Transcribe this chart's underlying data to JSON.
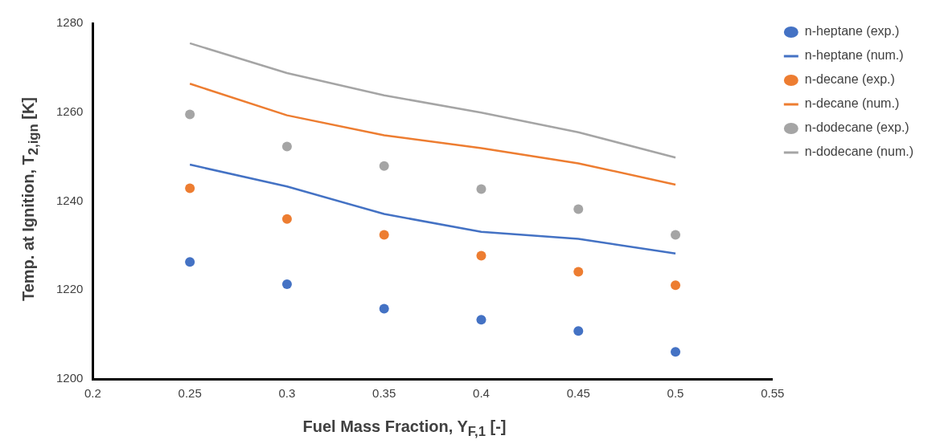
{
  "chart_data": {
    "type": "scatter",
    "xlabel": "Fuel Mass Fraction, Y$_{F,1}$ [-]",
    "ylabel": "Temp. at Ignition, T$_{2,ign}$ [K]",
    "x": [
      0.25,
      0.3,
      0.35,
      0.4,
      0.45,
      0.5
    ],
    "xlim": [
      0.2,
      0.55
    ],
    "xticks": [
      0.2,
      0.25,
      0.3,
      0.35,
      0.4,
      0.45,
      0.5,
      0.55
    ],
    "ylim": [
      1200,
      1280
    ],
    "yticks": [
      1200,
      1220,
      1240,
      1260,
      1280
    ],
    "grid": false,
    "legend": "right",
    "series": [
      {
        "name": "n-heptane (exp.)",
        "type": "scatter",
        "marker": "circle",
        "color": "#4472c4",
        "values": [
          1226.3,
          1221.3,
          1215.8,
          1213.3,
          1210.8,
          1206.1
        ]
      },
      {
        "name": "n-heptane (num.)",
        "type": "line",
        "marker": "none",
        "color": "#4472c4",
        "values": [
          1248.2,
          1243.3,
          1237.1,
          1233.1,
          1231.5,
          1228.2
        ]
      },
      {
        "name": "n-decane (exp.)",
        "type": "scatter",
        "marker": "circle",
        "color": "#ed7d31",
        "values": [
          1242.9,
          1236.0,
          1232.4,
          1227.7,
          1224.1,
          1221.1
        ]
      },
      {
        "name": "n-decane (num.)",
        "type": "line",
        "marker": "none",
        "color": "#ed7d31",
        "values": [
          1266.4,
          1259.3,
          1254.8,
          1251.9,
          1248.5,
          1243.7
        ]
      },
      {
        "name": "n-dodecane (exp.)",
        "type": "scatter",
        "marker": "circle",
        "color": "#a5a5a5",
        "values": [
          1259.5,
          1252.3,
          1247.9,
          1242.7,
          1238.2,
          1232.4
        ]
      },
      {
        "name": "n-dodecane (num.)",
        "type": "line",
        "marker": "none",
        "color": "#a5a5a5",
        "values": [
          1275.5,
          1268.8,
          1263.8,
          1259.9,
          1255.5,
          1249.8
        ]
      }
    ]
  }
}
